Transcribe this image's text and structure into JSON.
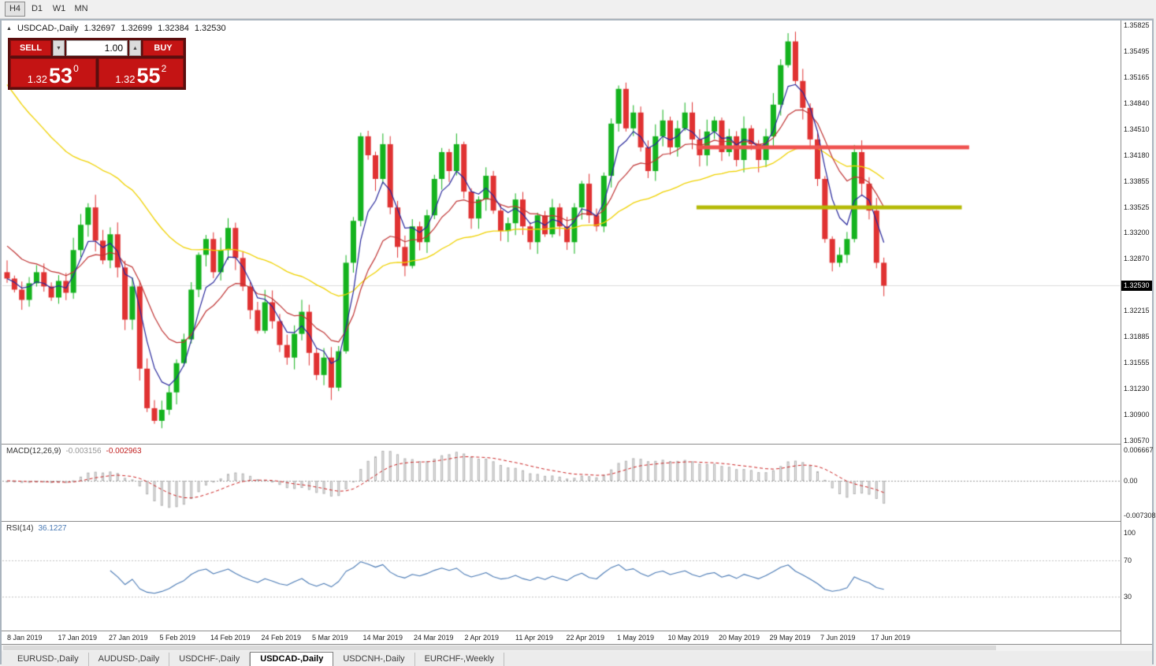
{
  "icons": {
    "collapse": "▲",
    "spin_down": "▼",
    "spin_up": "▲"
  },
  "toolbar": {
    "timeframes": [
      {
        "label": "H4",
        "active": true
      },
      {
        "label": "D1",
        "active": false
      },
      {
        "label": "W1",
        "active": false
      },
      {
        "label": "MN",
        "active": false
      }
    ]
  },
  "chart": {
    "title": "USDCAD-,Daily",
    "ohlc": {
      "open": "1.32697",
      "high": "1.32699",
      "low": "1.32384",
      "close": "1.32530"
    },
    "current_price": "1.32530",
    "trade_panel": {
      "sell_label": "SELL",
      "buy_label": "BUY",
      "volume": "1.00",
      "bid": {
        "prefix": "1.32",
        "big": "53",
        "sup": "0"
      },
      "ask": {
        "prefix": "1.32",
        "big": "55",
        "sup": "2"
      }
    },
    "price_axis_labels": [
      "1.35825",
      "1.35495",
      "1.35165",
      "1.34840",
      "1.34510",
      "1.34180",
      "1.33855",
      "1.33525",
      "1.33200",
      "1.32870",
      "1.32215",
      "1.31885",
      "1.31555",
      "1.31230",
      "1.30900",
      "1.30570"
    ],
    "date_axis_labels": [
      "8 Jan 2019",
      "17 Jan 2019",
      "27 Jan 2019",
      "5 Feb 2019",
      "14 Feb 2019",
      "24 Feb 2019",
      "5 Mar 2019",
      "14 Mar 2019",
      "24 Mar 2019",
      "2 Apr 2019",
      "11 Apr 2019",
      "22 Apr 2019",
      "1 May 2019",
      "10 May 2019",
      "20 May 2019",
      "29 May 2019",
      "7 Jun 2019",
      "17 Jun 2019"
    ],
    "levels": {
      "resistance": {
        "price": 1.3428,
        "from_bar": 94,
        "to_bar": 131
      },
      "support": {
        "price": 1.3352,
        "from_bar": 94,
        "to_bar": 130
      }
    }
  },
  "chart_data": {
    "type": "candlestick",
    "symbol": "USDCAD",
    "timeframe": "Daily",
    "y_range": [
      1.3057,
      1.35825
    ],
    "first_open": 1.327,
    "closes": [
      1.3262,
      1.3248,
      1.3235,
      1.3256,
      1.327,
      1.3252,
      1.3238,
      1.3259,
      1.3244,
      1.3298,
      1.333,
      1.3352,
      1.331,
      1.3285,
      1.3318,
      1.3276,
      1.321,
      1.3252,
      1.3148,
      1.3098,
      1.3082,
      1.3096,
      1.3118,
      1.3155,
      1.3185,
      1.3248,
      1.3292,
      1.3312,
      1.327,
      1.3298,
      1.3326,
      1.3288,
      1.3252,
      1.3222,
      1.3196,
      1.3232,
      1.3208,
      1.3178,
      1.3162,
      1.3192,
      1.322,
      1.3168,
      1.314,
      1.3162,
      1.3124,
      1.317,
      1.3282,
      1.3335,
      1.3442,
      1.3418,
      1.3388,
      1.3432,
      1.3352,
      1.3302,
      1.3278,
      1.3328,
      1.3308,
      1.3342,
      1.3388,
      1.3422,
      1.3398,
      1.3432,
      1.3372,
      1.3338,
      1.3362,
      1.3392,
      1.3348,
      1.3322,
      1.3332,
      1.3362,
      1.3328,
      1.3308,
      1.3342,
      1.3318,
      1.3352,
      1.3328,
      1.3308,
      1.3352,
      1.3382,
      1.3342,
      1.3328,
      1.3392,
      1.3458,
      1.3502,
      1.3452,
      1.3472,
      1.3428,
      1.3398,
      1.3442,
      1.3462,
      1.3428,
      1.3452,
      1.3472,
      1.3438,
      1.3418,
      1.3448,
      1.3462,
      1.3422,
      1.3442,
      1.3412,
      1.3452,
      1.3432,
      1.3412,
      1.3442,
      1.3482,
      1.3532,
      1.3562,
      1.3512,
      1.3478,
      1.3438,
      1.3388,
      1.3312,
      1.3282,
      1.3292,
      1.3312,
      1.3422,
      1.3382,
      1.3348,
      1.3282,
      1.3253
    ],
    "moving_averages": [
      {
        "period": 5,
        "role": "fast"
      },
      {
        "period": 13,
        "role": "mid"
      },
      {
        "period": 40,
        "role": "slow",
        "seed": 1.352
      }
    ]
  },
  "macd": {
    "name": "MACD(12,26,9)",
    "value_main": "-0.003156",
    "value_signal": "-0.002963",
    "params": {
      "fast": 12,
      "slow": 26,
      "signal": 9
    },
    "axis": {
      "top": "0.006667",
      "zero": "0.00",
      "bottom": "-0.007308"
    }
  },
  "rsi": {
    "name": "RSI(14)",
    "value": "36.1227",
    "period": 14,
    "levels": [
      70,
      30
    ],
    "axis": [
      "100",
      "70",
      "30"
    ]
  },
  "tabs": [
    {
      "label": "EURUSD-,Daily",
      "active": false
    },
    {
      "label": "AUDUSD-,Daily",
      "active": false
    },
    {
      "label": "USDCHF-,Daily",
      "active": false
    },
    {
      "label": "USDCAD-,Daily",
      "active": true
    },
    {
      "label": "USDCNH-,Daily",
      "active": false
    },
    {
      "label": "EURCHF-,Weekly",
      "active": false
    }
  ],
  "colors": {
    "bull": "#14b31e",
    "bear": "#e03232",
    "ma_fast": "#28289c",
    "ma_mid": "#c03434",
    "ma_slow": "#f0d200",
    "resistance": "#ef5350",
    "support": "#b5ba08",
    "macd_bar_fill": "#ececec",
    "macd_bar_stroke": "#b2b2b2",
    "macd_signal": "#cc2222",
    "rsi_line": "#4a7ab5",
    "current_price_line": "#dcdcdc",
    "badge_bg": "#000000"
  }
}
